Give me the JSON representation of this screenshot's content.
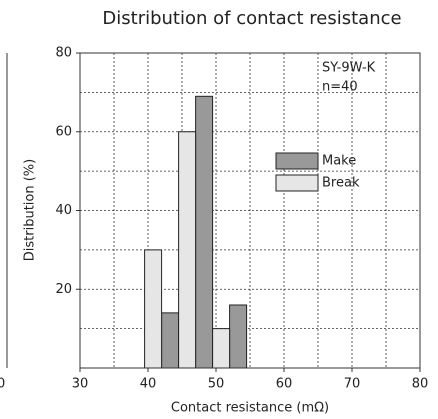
{
  "chart_data": {
    "type": "grouped_bar",
    "title": "Distribution of contact resistance",
    "xlabel": "Contact resistance (mΩ)",
    "ylabel": "Distribution (%)",
    "annotation": [
      "SY-9W-K",
      "n=40"
    ],
    "clipped_text": "0",
    "x": [
      42,
      47,
      52
    ],
    "series": [
      {
        "name": "Make",
        "color": "#999999",
        "values": [
          14,
          69,
          16
        ]
      },
      {
        "name": "Break",
        "color": "#e6e6e6",
        "values": [
          30,
          60,
          10
        ]
      }
    ],
    "xlim": [
      30,
      80
    ],
    "xticks": [
      30,
      40,
      50,
      60,
      70,
      80
    ],
    "ylim": [
      0,
      80
    ],
    "yticks": [
      20,
      40,
      60,
      80
    ],
    "xgrid": [
      35,
      40,
      45,
      50,
      55,
      60,
      65,
      70,
      75
    ],
    "ygrid": [
      10,
      20,
      30,
      40,
      50,
      60,
      70
    ],
    "grid": true
  }
}
